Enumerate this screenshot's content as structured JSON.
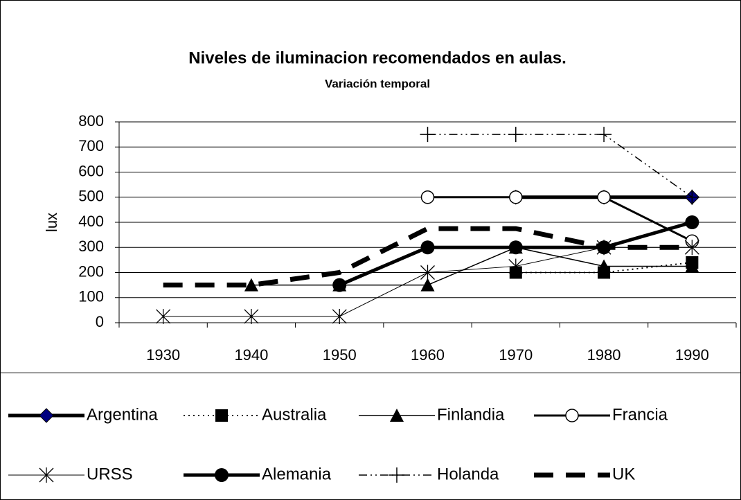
{
  "chart_data": {
    "type": "line",
    "title": "Niveles de iluminacion recomendados en aulas.",
    "subtitle": "Variación temporal",
    "y_label": "lux",
    "categories": [
      "1930",
      "1940",
      "1950",
      "1960",
      "1970",
      "1980",
      "1990"
    ],
    "ylim": [
      0,
      800
    ],
    "yticks": [
      0,
      100,
      200,
      300,
      400,
      500,
      600,
      700,
      800
    ],
    "grid": true,
    "legend": "bottom",
    "series": [
      {
        "name": "Argentina",
        "color": "#000000",
        "marker_color": "#000080",
        "marker": "diamond",
        "width": 5,
        "dash": "none",
        "values": [
          null,
          null,
          null,
          null,
          500,
          500,
          500
        ]
      },
      {
        "name": "Australia",
        "color": "#000000",
        "marker_color": "#000000",
        "marker": "square",
        "width": 2,
        "dash": "2,5",
        "values": [
          null,
          null,
          null,
          null,
          200,
          200,
          240
        ]
      },
      {
        "name": "Finlandia",
        "color": "#000000",
        "marker_color": "#000000",
        "marker": "triangle",
        "width": 1.5,
        "dash": "none",
        "values": [
          null,
          150,
          150,
          150,
          300,
          225,
          225
        ]
      },
      {
        "name": "Francia",
        "color": "#000000",
        "marker_color": "#ffffff",
        "marker": "circle",
        "width": 3,
        "dash": "none",
        "values": [
          null,
          null,
          null,
          500,
          500,
          500,
          325
        ]
      },
      {
        "name": "URSS",
        "color": "#000000",
        "marker_color": "#000000",
        "marker": "asterisk",
        "width": 1,
        "dash": "none",
        "values": [
          25,
          25,
          25,
          200,
          225,
          300,
          300
        ]
      },
      {
        "name": "Alemania",
        "color": "#000000",
        "marker_color": "#000000",
        "marker": "dot",
        "width": 5,
        "dash": "none",
        "values": [
          null,
          null,
          150,
          300,
          300,
          300,
          400
        ]
      },
      {
        "name": "Holanda",
        "color": "#000000",
        "marker_color": "#000000",
        "marker": "plus",
        "width": 1.5,
        "dash": "12,5,2,5,2,5",
        "values": [
          null,
          null,
          null,
          750,
          750,
          750,
          500
        ]
      },
      {
        "name": "UK",
        "color": "#000000",
        "marker_color": "#000000",
        "marker": "none",
        "width": 7,
        "dash": "28,18",
        "values": [
          150,
          150,
          200,
          375,
          375,
          300,
          300
        ]
      }
    ]
  }
}
